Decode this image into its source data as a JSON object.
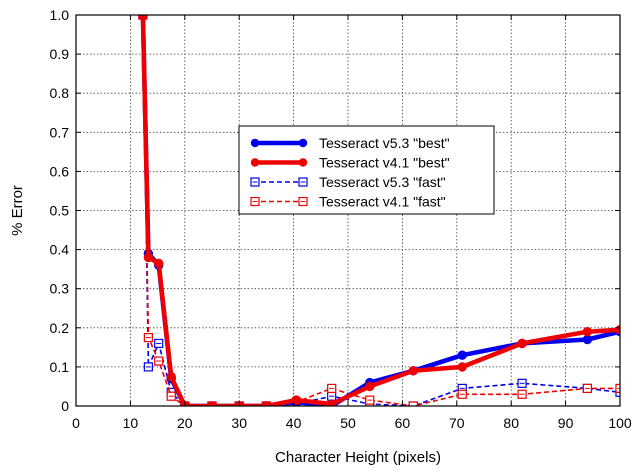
{
  "chart_data": {
    "type": "line",
    "xlabel": "Character Height (pixels)",
    "ylabel": "% Error",
    "xlim": [
      0,
      100
    ],
    "ylim": [
      0,
      1.0
    ],
    "xticks": [
      "0",
      "10",
      "20",
      "30",
      "40",
      "50",
      "60",
      "70",
      "80",
      "90",
      "100"
    ],
    "yticks": [
      "0",
      "0.1",
      "0.2",
      "0.3",
      "0.4",
      "0.5",
      "0.6",
      "0.7",
      "0.8",
      "0.9",
      "1.0"
    ],
    "grid": true,
    "legend_position": "upper-center",
    "series": [
      {
        "name": "Tesseract v5.3 \"best\"",
        "color": "#0000ee",
        "style": "solid",
        "marker": "filled-circle",
        "x": [
          12.3,
          13.3,
          15.2,
          17.5,
          20,
          25,
          30,
          35,
          40.5,
          47,
          54,
          62,
          71,
          82,
          94,
          100
        ],
        "y": [
          1.0,
          0.39,
          0.36,
          0.07,
          0.0,
          0.0,
          0.0,
          0.0,
          0.01,
          0.0,
          0.06,
          0.09,
          0.13,
          0.16,
          0.17,
          0.19
        ]
      },
      {
        "name": "Tesseract v4.1 \"best\"",
        "color": "#ee0000",
        "style": "solid",
        "marker": "filled-circle",
        "x": [
          12.3,
          13.3,
          15.2,
          17.5,
          20,
          25,
          30,
          35,
          40.5,
          47,
          54,
          62,
          71,
          82,
          94,
          100
        ],
        "y": [
          1.0,
          0.38,
          0.365,
          0.075,
          0.0,
          0.0,
          0.0,
          0.0,
          0.015,
          0.005,
          0.05,
          0.09,
          0.1,
          0.16,
          0.19,
          0.195
        ]
      },
      {
        "name": "Tesseract v5.3 \"fast\"",
        "color": "#0000ee",
        "style": "dashed",
        "marker": "open-square",
        "x": [
          12.3,
          13.3,
          15.2,
          17.5,
          20,
          25,
          30,
          35,
          40.5,
          47,
          54,
          62,
          71,
          82,
          94,
          100
        ],
        "y": [
          1.0,
          0.1,
          0.16,
          0.035,
          0.0,
          0.0,
          0.0,
          0.0,
          0.005,
          0.025,
          0.005,
          0.0,
          0.045,
          0.058,
          0.045,
          0.035
        ]
      },
      {
        "name": "Tesseract v4.1 \"fast\"",
        "color": "#ee0000",
        "style": "dashed",
        "marker": "open-square",
        "x": [
          12.3,
          13.3,
          15.2,
          17.5,
          20,
          25,
          30,
          35,
          40.5,
          47,
          54,
          62,
          71,
          82,
          94,
          100
        ],
        "y": [
          1.0,
          0.175,
          0.115,
          0.025,
          0.0,
          0.0,
          0.0,
          0.0,
          0.01,
          0.045,
          0.015,
          0.0,
          0.03,
          0.03,
          0.045,
          0.045
        ]
      }
    ]
  }
}
